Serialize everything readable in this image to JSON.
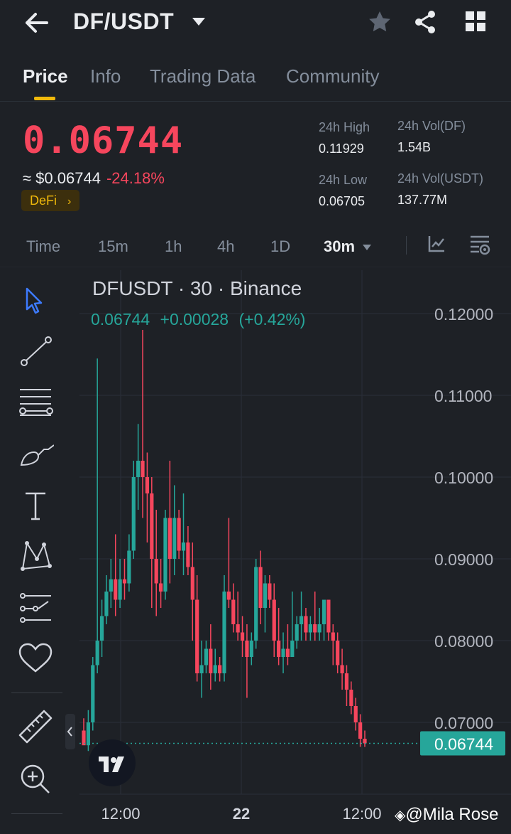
{
  "header": {
    "title": "DF/USDT",
    "icons": [
      "back-arrow-icon",
      "caret-down-icon",
      "star-icon",
      "share-icon",
      "grid-icon"
    ]
  },
  "tabs": [
    {
      "label": "Price"
    },
    {
      "label": "Info"
    },
    {
      "label": "Trading Data"
    },
    {
      "label": "Community"
    }
  ],
  "summary": {
    "price": "0.06744",
    "usd_price": "≈ $0.06744",
    "change": "-24.18%",
    "tag": "DeFi",
    "high_label": "24h High",
    "high_value": "0.11929",
    "low_label": "24h Low",
    "low_value": "0.06705",
    "vol_base_label": "24h Vol(DF)",
    "vol_base_value": "1.54B",
    "vol_quote_label": "24h Vol(USDT)",
    "vol_quote_value": "137.77M"
  },
  "timeframes": [
    "Time",
    "15m",
    "1h",
    "4h",
    "1D",
    "30m"
  ],
  "colors": {
    "up": "#26a69a",
    "down": "#f6465d",
    "accent": "#f0b90b",
    "selected_tool": "#3d7bff"
  },
  "chart": {
    "title": "DFUSDT · 30 · Binance",
    "last": "0.06744",
    "change": "+0.00028",
    "change_pct": "(+0.42%)",
    "price_tag": "0.06744",
    "watermark": "@Mila Rose"
  },
  "chart_data": {
    "type": "candlestick",
    "title": "DFUSDT · 30 · Binance",
    "y_ticks": [
      0.12,
      0.11,
      0.1,
      0.09,
      0.08,
      0.07
    ],
    "y_tick_labels": [
      "0.12000",
      "0.11000",
      "0.10000",
      "0.09000",
      "0.08000",
      "0.07000"
    ],
    "x_tick_labels": [
      "12:00",
      "22",
      "12:00"
    ],
    "ylim": [
      0.0635,
      0.1215
    ],
    "last_price": 0.06744,
    "candles": [
      [
        0.069,
        0.0705,
        0.0675,
        0.0672
      ],
      [
        0.0672,
        0.0715,
        0.0665,
        0.07
      ],
      [
        0.07,
        0.078,
        0.069,
        0.077
      ],
      [
        0.077,
        0.1145,
        0.076,
        0.08
      ],
      [
        0.08,
        0.085,
        0.078,
        0.083
      ],
      [
        0.083,
        0.088,
        0.082,
        0.086
      ],
      [
        0.086,
        0.09,
        0.084,
        0.0875
      ],
      [
        0.0875,
        0.093,
        0.083,
        0.085
      ],
      [
        0.085,
        0.09,
        0.084,
        0.0875
      ],
      [
        0.0875,
        0.09,
        0.085,
        0.087
      ],
      [
        0.087,
        0.093,
        0.086,
        0.091
      ],
      [
        0.091,
        0.102,
        0.09,
        0.1
      ],
      [
        0.1,
        0.1065,
        0.096,
        0.102
      ],
      [
        0.102,
        0.118,
        0.095,
        0.1
      ],
      [
        0.1,
        0.103,
        0.092,
        0.098
      ],
      [
        0.098,
        0.1,
        0.084,
        0.09
      ],
      [
        0.09,
        0.096,
        0.083,
        0.087
      ],
      [
        0.087,
        0.09,
        0.084,
        0.086
      ],
      [
        0.086,
        0.096,
        0.085,
        0.095
      ],
      [
        0.095,
        0.102,
        0.087,
        0.09
      ],
      [
        0.09,
        0.099,
        0.088,
        0.095
      ],
      [
        0.095,
        0.096,
        0.09,
        0.091
      ],
      [
        0.091,
        0.098,
        0.088,
        0.092
      ],
      [
        0.092,
        0.094,
        0.088,
        0.089
      ],
      [
        0.089,
        0.092,
        0.08,
        0.085
      ],
      [
        0.085,
        0.088,
        0.075,
        0.076
      ],
      [
        0.076,
        0.08,
        0.073,
        0.077
      ],
      [
        0.077,
        0.08,
        0.076,
        0.079
      ],
      [
        0.079,
        0.082,
        0.074,
        0.076
      ],
      [
        0.076,
        0.079,
        0.075,
        0.077
      ],
      [
        0.077,
        0.078,
        0.075,
        0.076
      ],
      [
        0.076,
        0.088,
        0.075,
        0.086
      ],
      [
        0.086,
        0.095,
        0.084,
        0.085
      ],
      [
        0.085,
        0.087,
        0.081,
        0.082
      ],
      [
        0.082,
        0.086,
        0.08,
        0.081
      ],
      [
        0.081,
        0.083,
        0.078,
        0.08
      ],
      [
        0.08,
        0.082,
        0.073,
        0.078
      ],
      [
        0.078,
        0.081,
        0.077,
        0.08
      ],
      [
        0.08,
        0.09,
        0.079,
        0.089
      ],
      [
        0.089,
        0.091,
        0.082,
        0.084
      ],
      [
        0.084,
        0.088,
        0.081,
        0.087
      ],
      [
        0.087,
        0.088,
        0.084,
        0.085
      ],
      [
        0.085,
        0.087,
        0.078,
        0.08
      ],
      [
        0.08,
        0.084,
        0.077,
        0.078
      ],
      [
        0.078,
        0.081,
        0.076,
        0.079
      ],
      [
        0.079,
        0.082,
        0.077,
        0.078
      ],
      [
        0.078,
        0.086,
        0.078,
        0.08
      ],
      [
        0.08,
        0.083,
        0.079,
        0.082
      ],
      [
        0.082,
        0.086,
        0.08,
        0.083
      ],
      [
        0.083,
        0.084,
        0.08,
        0.081
      ],
      [
        0.081,
        0.083,
        0.08,
        0.082
      ],
      [
        0.082,
        0.086,
        0.08,
        0.081
      ],
      [
        0.081,
        0.084,
        0.08,
        0.082
      ],
      [
        0.082,
        0.085,
        0.08,
        0.085
      ],
      [
        0.085,
        0.085,
        0.08,
        0.081
      ],
      [
        0.081,
        0.082,
        0.077,
        0.08
      ],
      [
        0.08,
        0.081,
        0.076,
        0.077
      ],
      [
        0.077,
        0.079,
        0.074,
        0.076
      ],
      [
        0.076,
        0.077,
        0.072,
        0.074
      ],
      [
        0.074,
        0.075,
        0.071,
        0.072
      ],
      [
        0.072,
        0.073,
        0.069,
        0.07
      ],
      [
        0.07,
        0.071,
        0.067,
        0.068
      ],
      [
        0.068,
        0.069,
        0.067,
        0.06744
      ]
    ]
  }
}
